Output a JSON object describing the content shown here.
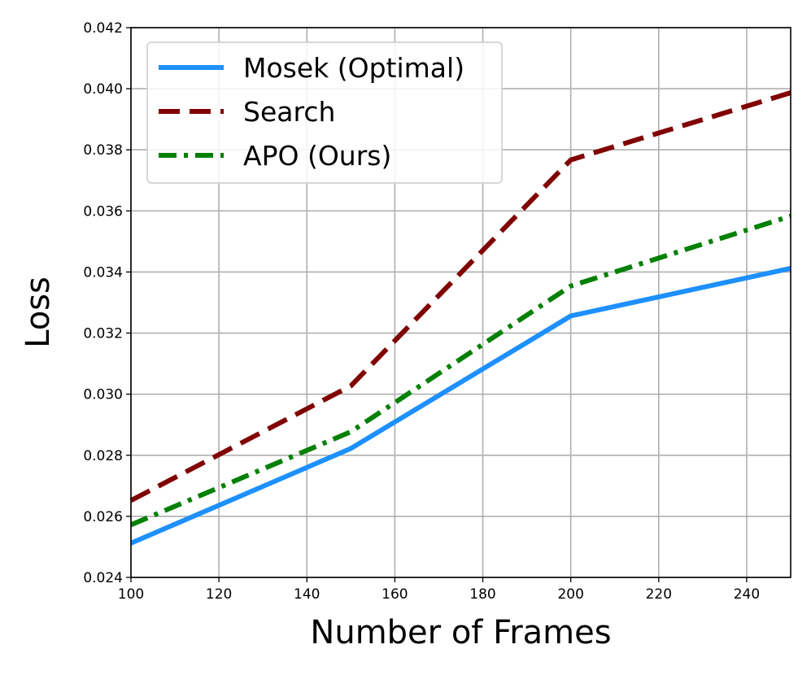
{
  "chart_data": {
    "type": "line",
    "xlabel": "Number of Frames",
    "ylabel": "Loss",
    "xlim": [
      100,
      250
    ],
    "ylim": [
      0.024,
      0.042
    ],
    "xticks": [
      100,
      120,
      140,
      160,
      180,
      200,
      220,
      240
    ],
    "xtick_labels": [
      "100",
      "120",
      "140",
      "160",
      "180",
      "200",
      "220",
      "240"
    ],
    "yticks": [
      0.024,
      0.026,
      0.028,
      0.03,
      0.032,
      0.034,
      0.036,
      0.038,
      0.04,
      0.042
    ],
    "ytick_labels": [
      "0.024",
      "0.026",
      "0.028",
      "0.030",
      "0.032",
      "0.034",
      "0.036",
      "0.038",
      "0.040",
      "0.042"
    ],
    "grid": true,
    "legend_position": "top-left",
    "series": [
      {
        "name": "Mosek (Optimal)",
        "color": "#1e90ff",
        "style": "solid",
        "x": [
          100,
          150,
          200,
          250
        ],
        "y": [
          0.02512,
          0.02822,
          0.03256,
          0.03412
        ]
      },
      {
        "name": "Search",
        "color": "#800000",
        "style": "dashed",
        "x": [
          100,
          150,
          200,
          250
        ],
        "y": [
          0.02652,
          0.03027,
          0.03767,
          0.03987
        ]
      },
      {
        "name": "APO (Ours)",
        "color": "#008000",
        "style": "dashdot",
        "x": [
          100,
          150,
          200,
          250
        ],
        "y": [
          0.02572,
          0.02877,
          0.03354,
          0.03583
        ]
      }
    ]
  }
}
